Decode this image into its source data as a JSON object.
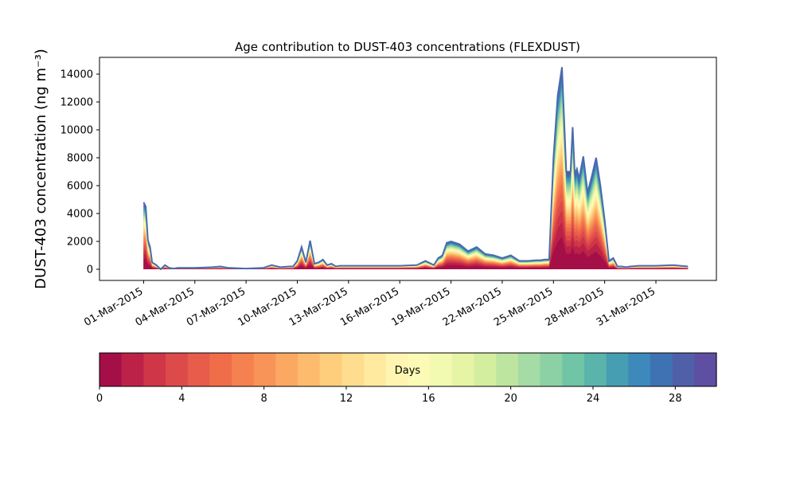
{
  "chart_data": {
    "type": "area",
    "title": "Age contribution to DUST-403 concentrations (FLEXDUST)",
    "ylabel": "DUST-403 concentration (ng m⁻³)",
    "xlabel": "",
    "ylim": [
      -800,
      15200
    ],
    "y_ticks": [
      0,
      2000,
      4000,
      6000,
      8000,
      10000,
      12000,
      14000
    ],
    "x_range": [
      "2015-02-26T10:00",
      "2015-04-03T13:00"
    ],
    "x_ticks": [
      "2015-03-01",
      "2015-03-04",
      "2015-03-07",
      "2015-03-10",
      "2015-03-13",
      "2015-03-16",
      "2015-03-19",
      "2015-03-22",
      "2015-03-25",
      "2015-03-28",
      "2015-03-31"
    ],
    "x_tick_labels": [
      "01-Mar-2015",
      "04-Mar-2015",
      "07-Mar-2015",
      "10-Mar-2015",
      "13-Mar-2015",
      "16-Mar-2015",
      "19-Mar-2015",
      "22-Mar-2015",
      "25-Mar-2015",
      "28-Mar-2015",
      "31-Mar-2015"
    ],
    "grid": false,
    "total_series": {
      "name": "total",
      "color": "#4a6bb0",
      "x": [
        "2015-03-01T00:00",
        "2015-03-01T03:00",
        "2015-03-01T06:00",
        "2015-03-01T09:00",
        "2015-03-01T12:00",
        "2015-03-01T18:00",
        "2015-03-02T00:00",
        "2015-03-02T06:00",
        "2015-03-02T12:00",
        "2015-03-02T18:00",
        "2015-03-03T00:00",
        "2015-03-04T00:00",
        "2015-03-05T00:00",
        "2015-03-05T12:00",
        "2015-03-06T00:00",
        "2015-03-07T00:00",
        "2015-03-08T00:00",
        "2015-03-08T12:00",
        "2015-03-09T00:00",
        "2015-03-09T12:00",
        "2015-03-09T18:00",
        "2015-03-10T00:00",
        "2015-03-10T06:00",
        "2015-03-10T12:00",
        "2015-03-10T18:00",
        "2015-03-11T00:00",
        "2015-03-11T06:00",
        "2015-03-11T12:00",
        "2015-03-11T18:00",
        "2015-03-12T00:00",
        "2015-03-12T06:00",
        "2015-03-12T12:00",
        "2015-03-13T00:00",
        "2015-03-14T00:00",
        "2015-03-15T00:00",
        "2015-03-16T00:00",
        "2015-03-17T00:00",
        "2015-03-17T12:00",
        "2015-03-18T00:00",
        "2015-03-18T06:00",
        "2015-03-18T12:00",
        "2015-03-18T18:00",
        "2015-03-19T00:00",
        "2015-03-19T12:00",
        "2015-03-20T00:00",
        "2015-03-20T12:00",
        "2015-03-21T00:00",
        "2015-03-21T12:00",
        "2015-03-22T00:00",
        "2015-03-22T12:00",
        "2015-03-23T00:00",
        "2015-03-23T12:00",
        "2015-03-24T00:00",
        "2015-03-24T06:00",
        "2015-03-24T12:00",
        "2015-03-24T18:00",
        "2015-03-25T00:00",
        "2015-03-25T06:00",
        "2015-03-25T12:00",
        "2015-03-25T18:00",
        "2015-03-26T00:00",
        "2015-03-26T03:00",
        "2015-03-26T06:00",
        "2015-03-26T09:00",
        "2015-03-26T12:00",
        "2015-03-26T18:00",
        "2015-03-27T00:00",
        "2015-03-27T06:00",
        "2015-03-27T12:00",
        "2015-03-27T18:00",
        "2015-03-28T00:00",
        "2015-03-28T06:00",
        "2015-03-28T12:00",
        "2015-03-28T18:00",
        "2015-03-29T00:00",
        "2015-03-29T06:00",
        "2015-03-29T12:00",
        "2015-03-30T00:00",
        "2015-03-31T00:00",
        "2015-04-01T00:00",
        "2015-04-01T21:00"
      ],
      "values": [
        4800,
        4500,
        2100,
        1600,
        500,
        300,
        0,
        300,
        100,
        50,
        100,
        100,
        150,
        200,
        100,
        50,
        100,
        300,
        150,
        200,
        200,
        600,
        1600,
        500,
        2050,
        400,
        500,
        700,
        300,
        400,
        200,
        250,
        250,
        250,
        250,
        250,
        300,
        600,
        300,
        800,
        1000,
        1900,
        2000,
        1800,
        1300,
        1600,
        1100,
        1000,
        800,
        1000,
        600,
        600,
        650,
        650,
        700,
        700,
        8000,
        12500,
        14500,
        7000,
        7000,
        10200,
        6800,
        7200,
        6500,
        8100,
        5500,
        6700,
        8000,
        6000,
        3500,
        600,
        800,
        200,
        200,
        150,
        200,
        250,
        250,
        300,
        200
      ]
    },
    "colorbar": {
      "label": "Days",
      "min": 0,
      "max": 30,
      "ticks": [
        0,
        4,
        8,
        12,
        16,
        20,
        24,
        28
      ],
      "colors": [
        "#a50f48",
        "#bc2248",
        "#cf3648",
        "#dc4a4a",
        "#e75c4b",
        "#f06d4a",
        "#f58050",
        "#f89458",
        "#fba962",
        "#fdbc6d",
        "#fece7c",
        "#fedd8e",
        "#ffea9f",
        "#fff5b1",
        "#fbfab6",
        "#f2f9b1",
        "#e6f5a5",
        "#d4ee9f",
        "#bee5a0",
        "#a5dba4",
        "#8bd1a5",
        "#70c5a6",
        "#5ab4ab",
        "#469eb2",
        "#3d89bc",
        "#3f72b3",
        "#5060a8",
        "#5e4fa2"
      ]
    }
  }
}
